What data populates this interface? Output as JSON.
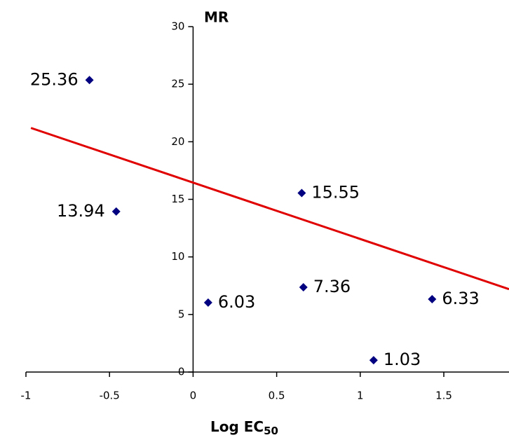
{
  "chart_data": {
    "type": "scatter",
    "y_label": "MR",
    "x_label": "Log EC",
    "x_label_subscript": "50",
    "series": [
      {
        "color": "#000080",
        "x": [
          -0.62,
          -0.46,
          0.09,
          0.65,
          0.66,
          1.08,
          1.43
        ],
        "values": [
          25.36,
          13.94,
          6.03,
          15.55,
          7.36,
          1.03,
          6.33
        ]
      }
    ],
    "trendline": {
      "color": "#e00000",
      "x": [
        -0.97,
        1.89
      ],
      "values": [
        21.2,
        7.2
      ]
    },
    "xlim": [
      -1,
      1.89
    ],
    "ylim": [
      0,
      30
    ],
    "xticks": [
      -1,
      -0.5,
      0,
      0.5,
      1,
      1.5
    ],
    "yticks": [
      0,
      5,
      10,
      15,
      20,
      25,
      30
    ]
  }
}
